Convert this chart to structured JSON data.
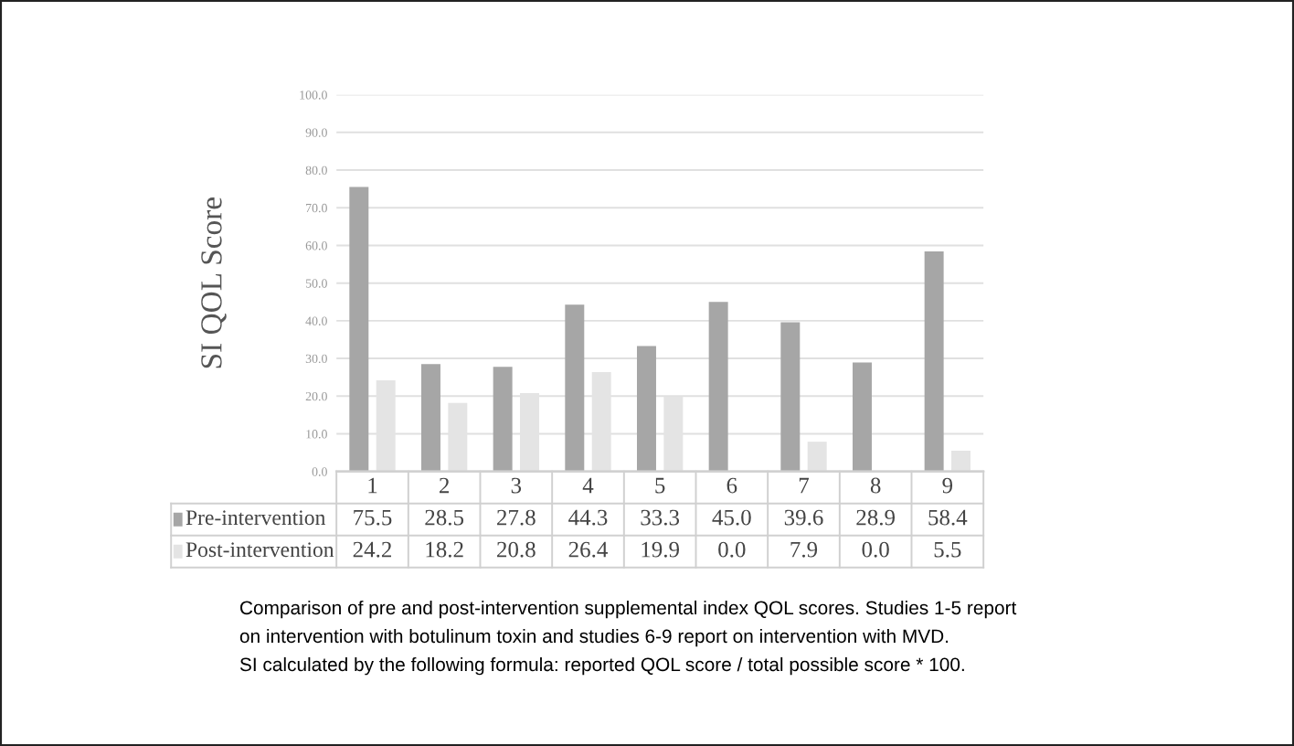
{
  "chart_data": {
    "type": "bar",
    "ylabel": "SI QOL Score",
    "categories": [
      "1",
      "2",
      "3",
      "4",
      "5",
      "6",
      "7",
      "8",
      "9"
    ],
    "series": [
      {
        "name": "Pre-intervention",
        "color": "#a6a6a6",
        "values": [
          75.5,
          28.5,
          27.8,
          44.3,
          33.3,
          45.0,
          39.6,
          28.9,
          58.4
        ],
        "value_labels": [
          "75.5",
          "28.5",
          "27.8",
          "44.3",
          "33.3",
          "45.0",
          "39.6",
          "28.9",
          "58.4"
        ]
      },
      {
        "name": "Post-intervention",
        "color": "#e4e4e4",
        "values": [
          24.2,
          18.2,
          20.8,
          26.4,
          19.9,
          0.0,
          7.9,
          0.0,
          5.5
        ],
        "value_labels": [
          "24.2",
          "18.2",
          "20.8",
          "26.4",
          "19.9",
          "0.0",
          "7.9",
          "0.0",
          "5.5"
        ]
      }
    ],
    "ylim": [
      0,
      100
    ],
    "yticks": [
      {
        "value": 0,
        "label": "0.0"
      },
      {
        "value": 10,
        "label": "10.0"
      },
      {
        "value": 20,
        "label": "20.0"
      },
      {
        "value": 30,
        "label": "30.0"
      },
      {
        "value": 40,
        "label": "40.0"
      },
      {
        "value": 50,
        "label": "50.0"
      },
      {
        "value": 60,
        "label": "60.0"
      },
      {
        "value": 70,
        "label": "70.0"
      },
      {
        "value": 80,
        "label": "80.0"
      },
      {
        "value": 90,
        "label": "90.0"
      },
      {
        "value": 100,
        "label": "100.0"
      }
    ],
    "grid": "y",
    "legend": "bottom",
    "annotations": [
      "Comparison of pre and post-intervention supplemental index QOL scores. Studies 1-5 report",
      "on intervention with botulinum toxin and studies 6-9 report on intervention with MVD.",
      "SI calculated by the following formula: reported QOL score / total possible score * 100."
    ]
  }
}
